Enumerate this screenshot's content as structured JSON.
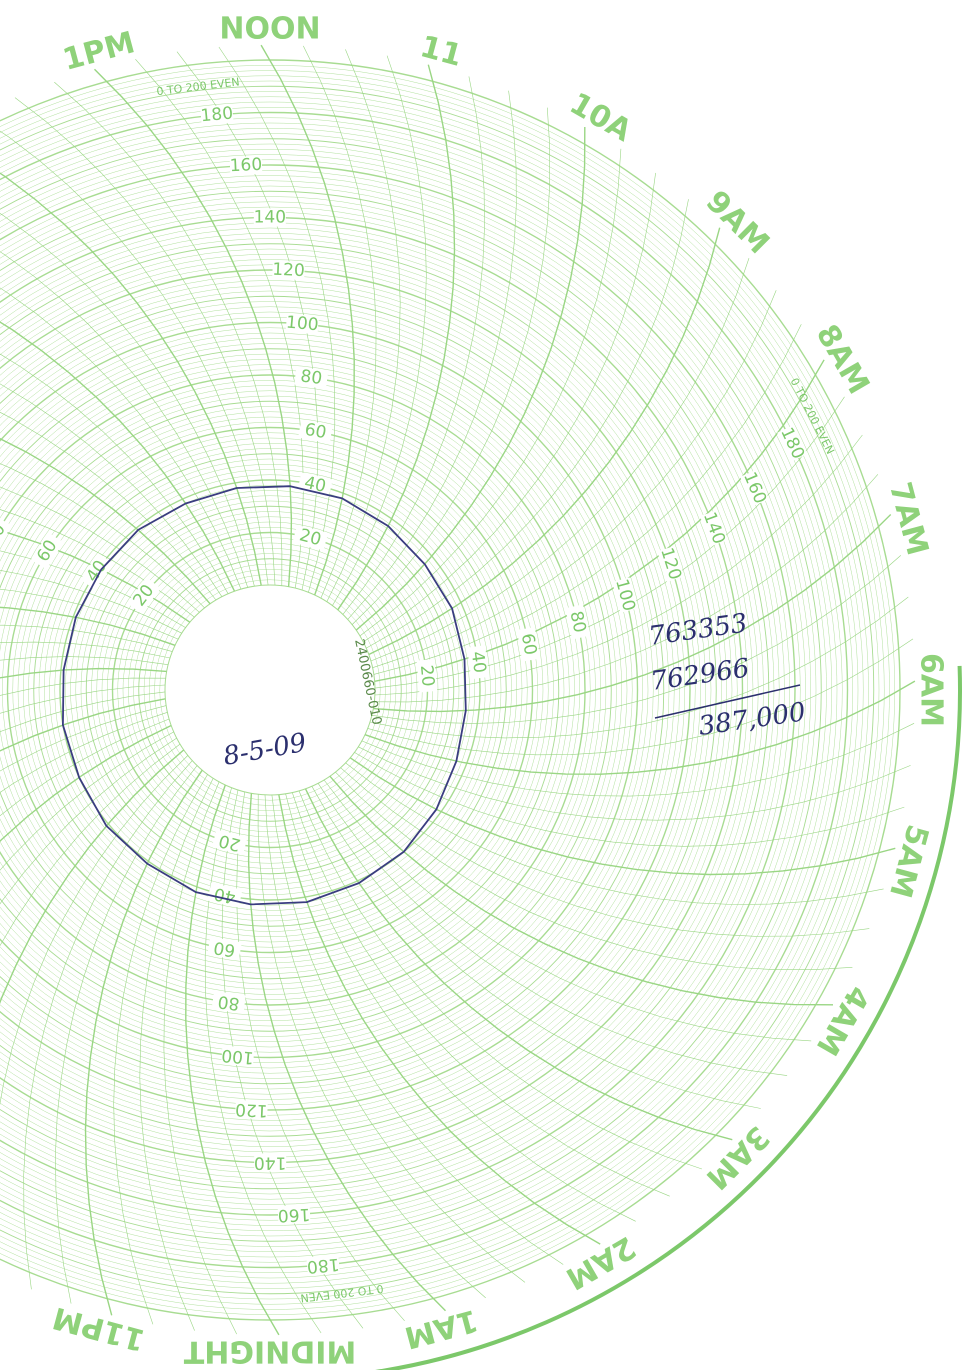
{
  "hour_labels": [
    "NOON",
    "11",
    "10A",
    "9AM",
    "8AM",
    "7AM",
    "6AM",
    "5AM",
    "4AM",
    "3AM",
    "2AM",
    "1AM",
    "MIDNIGHT",
    "11PM",
    null,
    null,
    null,
    null,
    null,
    null,
    null,
    null,
    null,
    "1PM"
  ],
  "scale_label": "0 TO 200 EVEN",
  "scale_range": [
    0,
    200
  ],
  "scale_ticks": [
    20,
    40,
    60,
    80,
    100,
    120,
    140,
    160,
    180
  ],
  "chart_id": "2400660-010",
  "pen_trace": {
    "values": [
      38,
      37,
      36,
      36,
      35,
      35,
      36,
      38,
      40,
      41,
      42,
      42,
      42,
      41,
      41,
      40,
      40,
      39,
      39,
      39,
      39,
      38,
      38,
      38
    ]
  },
  "handwritten": {
    "readings": [
      "763353",
      "762966"
    ],
    "difference": "387,000",
    "date": "8-5-09"
  }
}
